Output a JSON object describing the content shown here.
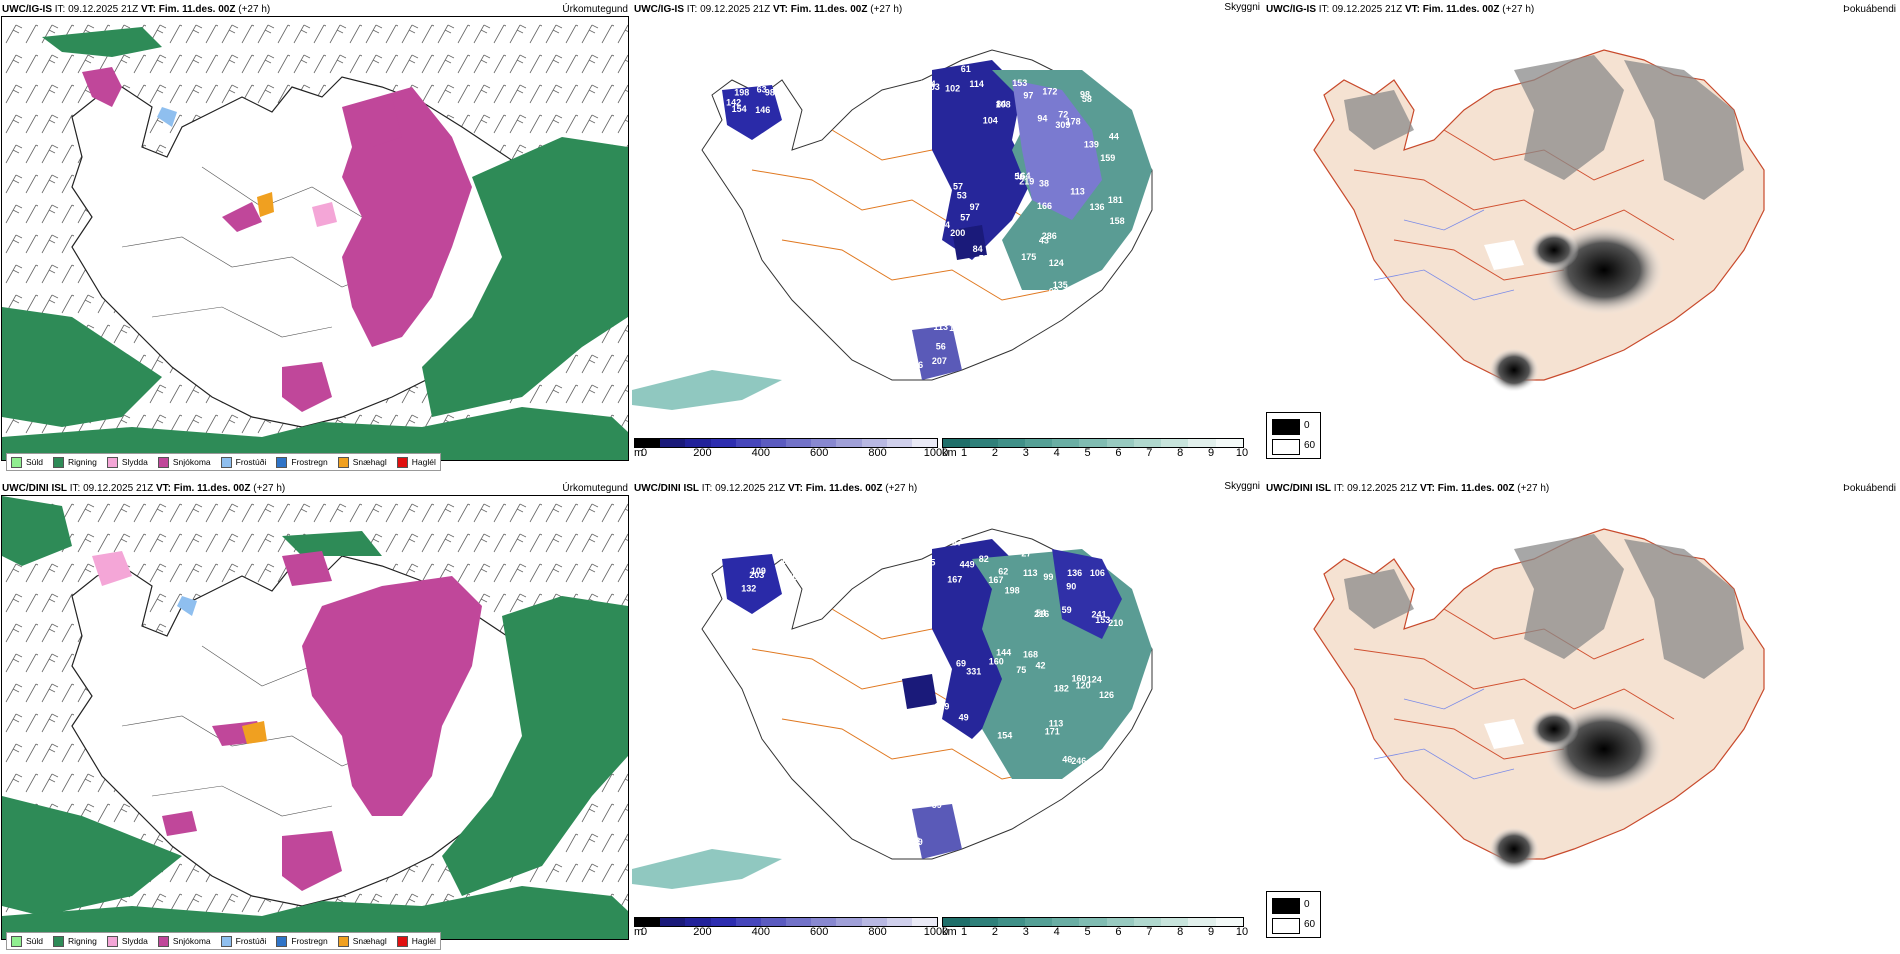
{
  "top": {
    "model": "UWC/IG-IS",
    "it_label": "IT:",
    "it_value": "09.12.2025 21Z",
    "vt_label": "VT:",
    "vt_value": "Fim. 11.des. 00Z",
    "lead": "(+27 h)",
    "precip_title": "Úrkomutegund",
    "cloud_title": "Skyggni",
    "fog_title": "Þokuábendi",
    "labels": [
      "154",
      "63",
      "53",
      "102",
      "108",
      "97",
      "72",
      "58",
      "44",
      "56",
      "38",
      "158",
      "53",
      "57",
      "58",
      "43",
      "62",
      "77",
      "207",
      "226",
      "142",
      "146",
      "95",
      "61",
      "84",
      "172",
      "94",
      "98",
      "139",
      "219",
      "113",
      "136",
      "97",
      "94",
      "84",
      "286",
      "135",
      "106",
      "134",
      "207",
      "198",
      "98",
      "734",
      "114",
      "104",
      "153",
      "309",
      "178",
      "159",
      "164",
      "166",
      "181",
      "57",
      "200",
      "552",
      "175",
      "124",
      "333",
      "113",
      "56"
    ]
  },
  "bottom": {
    "model": "UWC/DINI ISL",
    "it_label": "IT:",
    "it_value": "09.12.2025 21Z",
    "vt_label": "VT:",
    "vt_value": "Fim. 11.des. 00Z",
    "lead": "(+27 h)",
    "precip_title": "Úrkomutegund",
    "cloud_title": "Skyggni",
    "fog_title": "Þokuábendi",
    "labels": [
      "132",
      "56",
      "58",
      "87",
      "167",
      "99",
      "54",
      "106",
      "153",
      "75",
      "42",
      "120",
      "69",
      "49",
      "52",
      "113",
      "46",
      "58",
      "69",
      "52",
      "109",
      "108",
      "55",
      "82",
      "62",
      "27",
      "59",
      "90",
      "241",
      "168",
      "182",
      "126",
      "331",
      "109",
      "154",
      "171",
      "246",
      "88",
      "59",
      "189",
      "203",
      "179",
      "167",
      "449",
      "198",
      "113",
      "216",
      "136",
      "210",
      "144",
      "160",
      "124",
      "160"
    ]
  },
  "precip_legend": [
    {
      "label": "Súld",
      "color": "#90ee90"
    },
    {
      "label": "Rigning",
      "color": "#2e8b57"
    },
    {
      "label": "Slydda",
      "color": "#f4a6d7"
    },
    {
      "label": "Snjókoma",
      "color": "#c0479a"
    },
    {
      "label": "Frostúði",
      "color": "#8fbfef"
    },
    {
      "label": "Frostregn",
      "color": "#2f74c8"
    },
    {
      "label": "Snæhagl",
      "color": "#f0a020"
    },
    {
      "label": "Haglél",
      "color": "#e01010"
    }
  ],
  "cloud_base": {
    "unit": "m",
    "ticks": [
      "0",
      "200",
      "400",
      "600",
      "800",
      "1000"
    ],
    "colors": [
      "#000000",
      "#1a1a7a",
      "#22229a",
      "#2e2eb0",
      "#4646bb",
      "#5b5bc0",
      "#7272c8",
      "#8888d0",
      "#a0a0d8",
      "#b8b8e2",
      "#d0d0ec",
      "#eaeaf6"
    ]
  },
  "visibility": {
    "unit": "km",
    "ticks": [
      "1",
      "2",
      "3",
      "4",
      "5",
      "6",
      "7",
      "8",
      "9",
      "10"
    ],
    "colors": [
      "#1f6f6a",
      "#2f807a",
      "#409088",
      "#55a096",
      "#6aaea4",
      "#80bcb2",
      "#98cac0",
      "#b0d8ce",
      "#c8e4dc",
      "#e2f0ec",
      "#f4faf8"
    ]
  },
  "fog_legend": {
    "low": "0",
    "high": "60",
    "low_color": "#000000",
    "high_color": "#ffffff"
  }
}
